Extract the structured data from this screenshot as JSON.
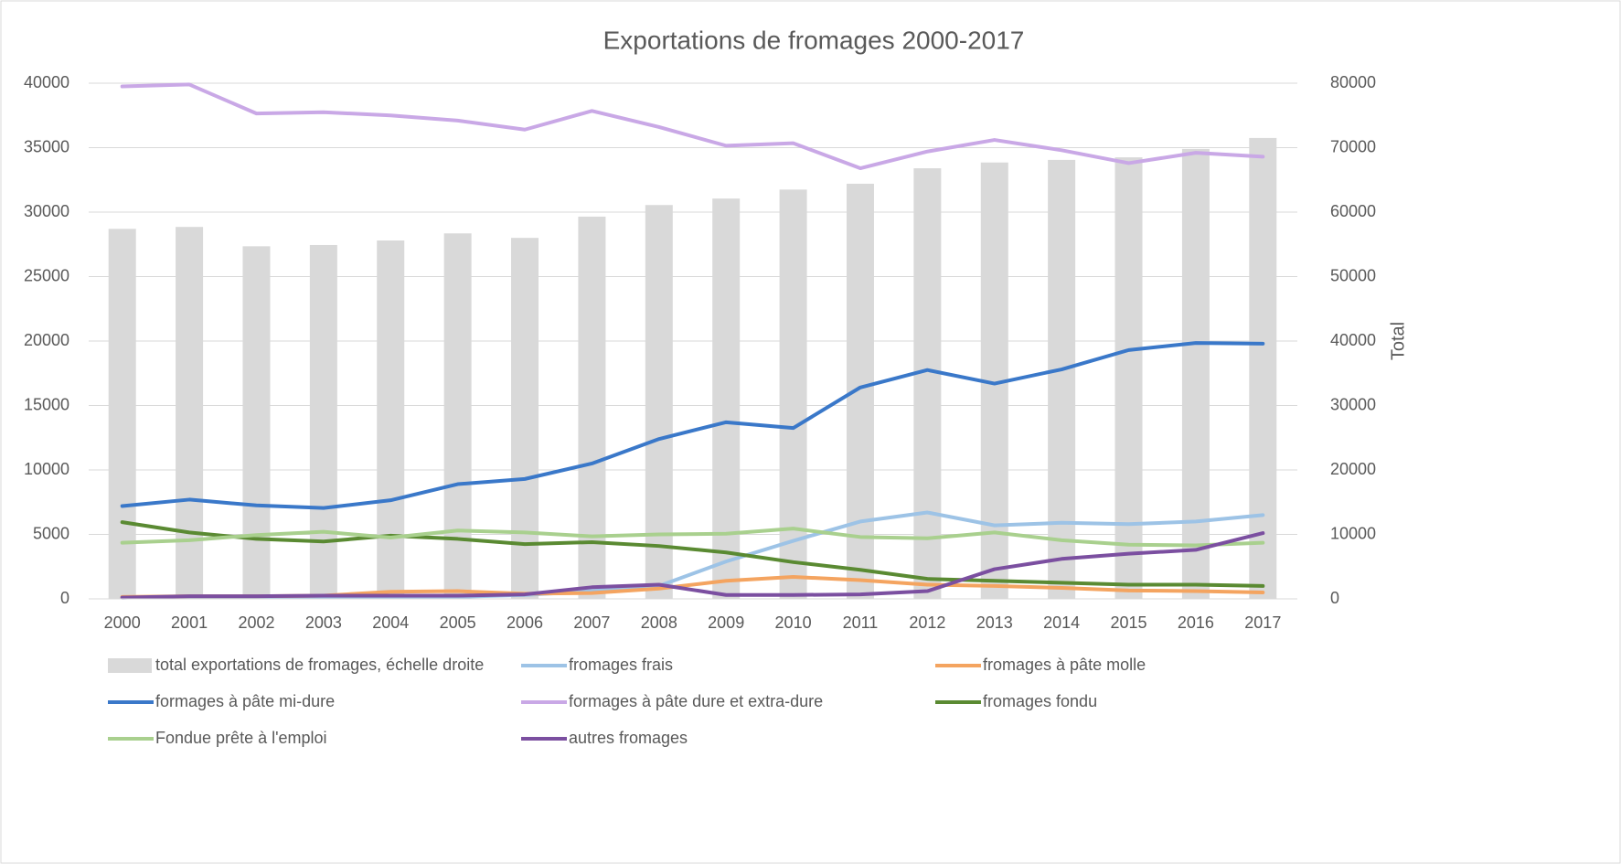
{
  "chart_data": {
    "type": "combo",
    "title": "Exportations de fromages 2000-2017",
    "categories": [
      "2000",
      "2001",
      "2002",
      "2003",
      "2004",
      "2005",
      "2006",
      "2007",
      "2008",
      "2009",
      "2010",
      "2011",
      "2012",
      "2013",
      "2014",
      "2015",
      "2016",
      "2017"
    ],
    "ylim": [
      0,
      40000
    ],
    "yticks": [
      0,
      5000,
      10000,
      15000,
      20000,
      25000,
      30000,
      35000,
      40000
    ],
    "y2lim": [
      0,
      80000
    ],
    "y2ticks": [
      0,
      10000,
      20000,
      30000,
      40000,
      50000,
      60000,
      70000,
      80000
    ],
    "y2label": "Total",
    "grid": true,
    "legend": "bottom",
    "series": [
      {
        "name": "total exportations de fromages, échelle droite",
        "type": "bar",
        "axis": "y2",
        "color": "#d9d9d9",
        "values": [
          57400,
          57700,
          54700,
          54900,
          55600,
          56700,
          56000,
          59300,
          61100,
          62100,
          63500,
          64400,
          66800,
          67700,
          68100,
          68500,
          69800,
          71500
        ]
      },
      {
        "name": "fromages frais",
        "type": "line",
        "color": "#9dc3e6",
        "values": [
          100,
          150,
          150,
          150,
          150,
          150,
          300,
          600,
          1000,
          2900,
          4500,
          6000,
          6700,
          5700,
          5900,
          5800,
          6000,
          6500
        ]
      },
      {
        "name": "fromages à pâte molle",
        "type": "line",
        "color": "#f4a460",
        "values": [
          150,
          200,
          200,
          250,
          550,
          600,
          400,
          450,
          800,
          1400,
          1700,
          1450,
          1100,
          1000,
          850,
          650,
          600,
          500
        ]
      },
      {
        "name": "formages à pâte mi-dure",
        "type": "line",
        "color": "#3a78c9",
        "values": [
          7200,
          7700,
          7250,
          7050,
          7650,
          8900,
          9300,
          10500,
          12400,
          13700,
          13250,
          16400,
          17750,
          16700,
          17800,
          19300,
          19850,
          19800
        ]
      },
      {
        "name": "formages à pâte dure et extra-dure",
        "type": "line",
        "color": "#c9a8e6",
        "values": [
          39750,
          39900,
          37650,
          37750,
          37500,
          37100,
          36400,
          37850,
          36600,
          35150,
          35350,
          33400,
          34700,
          35600,
          34800,
          33800,
          34600,
          34300
        ]
      },
      {
        "name": "fromages fondu",
        "type": "line",
        "color": "#5a8a32",
        "values": [
          5950,
          5150,
          4650,
          4450,
          4900,
          4650,
          4250,
          4400,
          4100,
          3600,
          2850,
          2250,
          1550,
          1400,
          1250,
          1100,
          1100,
          1000
        ]
      },
      {
        "name": "Fondue prête à l'emploi",
        "type": "line",
        "color": "#a9d08e",
        "values": [
          4350,
          4550,
          4950,
          5200,
          4750,
          5300,
          5150,
          4850,
          5000,
          5050,
          5450,
          4800,
          4700,
          5150,
          4550,
          4200,
          4150,
          4350
        ]
      },
      {
        "name": "autres fromages",
        "type": "line",
        "color": "#7b4fa0",
        "values": [
          100,
          200,
          200,
          250,
          250,
          250,
          350,
          900,
          1100,
          300,
          300,
          350,
          600,
          2300,
          3100,
          3500,
          3800,
          5100
        ]
      }
    ]
  }
}
